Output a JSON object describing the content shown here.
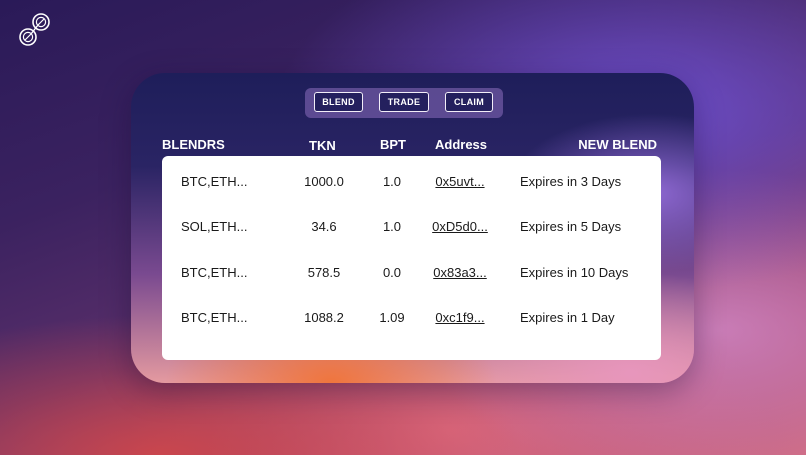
{
  "logo": {
    "icon": "link-rings-icon"
  },
  "tabs": [
    {
      "label": "BLEND"
    },
    {
      "label": "TRADE"
    },
    {
      "label": "CLAIM"
    }
  ],
  "table": {
    "headers": {
      "blendrs": "BLENDRS",
      "tkn": "TKN",
      "bpt": "BPT",
      "address": "Address",
      "new_blend": "NEW BLEND"
    },
    "rows": [
      {
        "pair": "BTC,ETH...",
        "tkn": "1000.0",
        "bpt": "1.0",
        "address": "0x5uvt...",
        "expiry": "Expires in 3 Days"
      },
      {
        "pair": "SOL,ETH...",
        "tkn": "34.6",
        "bpt": "1.0",
        "address": "0xD5d0...",
        "expiry": "Expires in 5 Days"
      },
      {
        "pair": "BTC,ETH...",
        "tkn": "578.5",
        "bpt": "0.0",
        "address": "0x83a3...",
        "expiry": "Expires in 10 Days"
      },
      {
        "pair": "BTC,ETH...",
        "tkn": "1088.2",
        "bpt": "1.09",
        "address": "0xc1f9...",
        "expiry": "Expires in 1 Day"
      }
    ]
  }
}
